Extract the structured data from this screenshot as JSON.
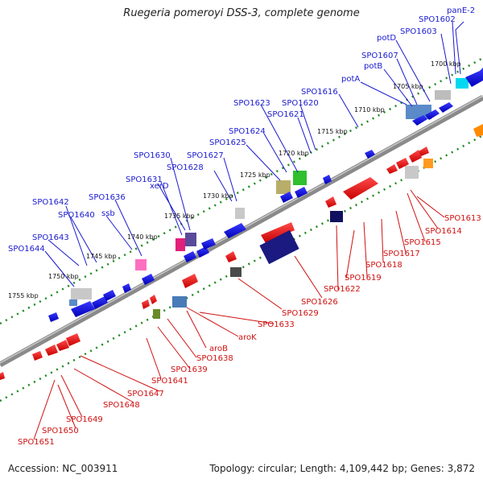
{
  "title": "Ruegeria pomeroyi DSS-3, complete genome",
  "footer": {
    "accession": "Accession: NC_003911",
    "stats": "Topology: circular; Length: 4,109,442 bp; Genes: 3,872"
  },
  "colors": {
    "label_top": "#1a1ad0",
    "label_bottom": "#d01010",
    "backbone": "#7a7a7a",
    "tick": "#1d8a1d"
  },
  "kbp_ticks": [
    "1700 kbp",
    "1705 kbp",
    "1710 kbp",
    "1715 kbp",
    "1720 kbp",
    "1725 kbp",
    "1730 kbp",
    "1735 kbp",
    "1740 kbp",
    "1745 kbp",
    "1750 kbp",
    "1755 kbp"
  ],
  "top_labels": [
    "panE-2",
    "SPO1602",
    "SPO1603",
    "potD",
    "SPO1607",
    "potB",
    "potA",
    "SPO1616",
    "SPO1620",
    "SPO1621",
    "SPO1623",
    "SPO1624",
    "SPO1625",
    "SPO1627",
    "SPO1628",
    "SPO1630",
    "SPO1631",
    "xerD",
    "SPO1636",
    "ssb",
    "SPO1640",
    "SPO1642",
    "SPO1643",
    "SPO1644"
  ],
  "bottom_labels": [
    "SPO1613",
    "SPO1614",
    "SPO1615",
    "SPO1617",
    "SPO1618",
    "SPO1619",
    "SPO1622",
    "SPO1626",
    "SPO1629",
    "SPO1633",
    "aroK",
    "aroB",
    "SPO1638",
    "SPO1639",
    "SPO1641",
    "SPO1647",
    "SPO1648",
    "SPO1649",
    "SPO1650",
    "SPO1651"
  ]
}
